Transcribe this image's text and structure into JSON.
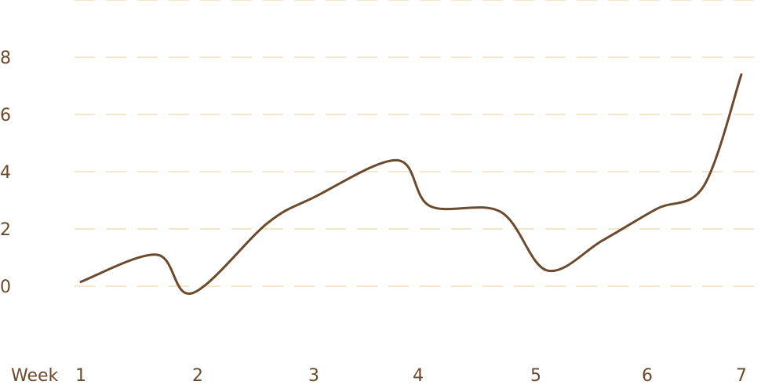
{
  "chart_data": {
    "type": "line",
    "title": "",
    "xlabel": "Week",
    "ylabel": "",
    "x_ticks": [
      1,
      2,
      3,
      4,
      5,
      6,
      7
    ],
    "y_ticks": [
      0,
      2,
      4,
      6,
      8
    ],
    "xlim": [
      1,
      7
    ],
    "ylim": [
      0,
      8
    ],
    "grid": true,
    "colors": {
      "line": "#6b4a2e",
      "grid": "#f0dfbe",
      "text": "#6b4a2e"
    },
    "series": [
      {
        "x": [
          1,
          1.65,
          1.95,
          2.6,
          3.0,
          3.8,
          4.1,
          4.7,
          5.1,
          5.6,
          6.1,
          6.6,
          7.0
        ],
        "values": [
          0.15,
          1.1,
          -0.25,
          2.2,
          3.1,
          4.4,
          2.8,
          2.6,
          0.55,
          1.6,
          2.7,
          3.5,
          7.4
        ]
      }
    ]
  }
}
